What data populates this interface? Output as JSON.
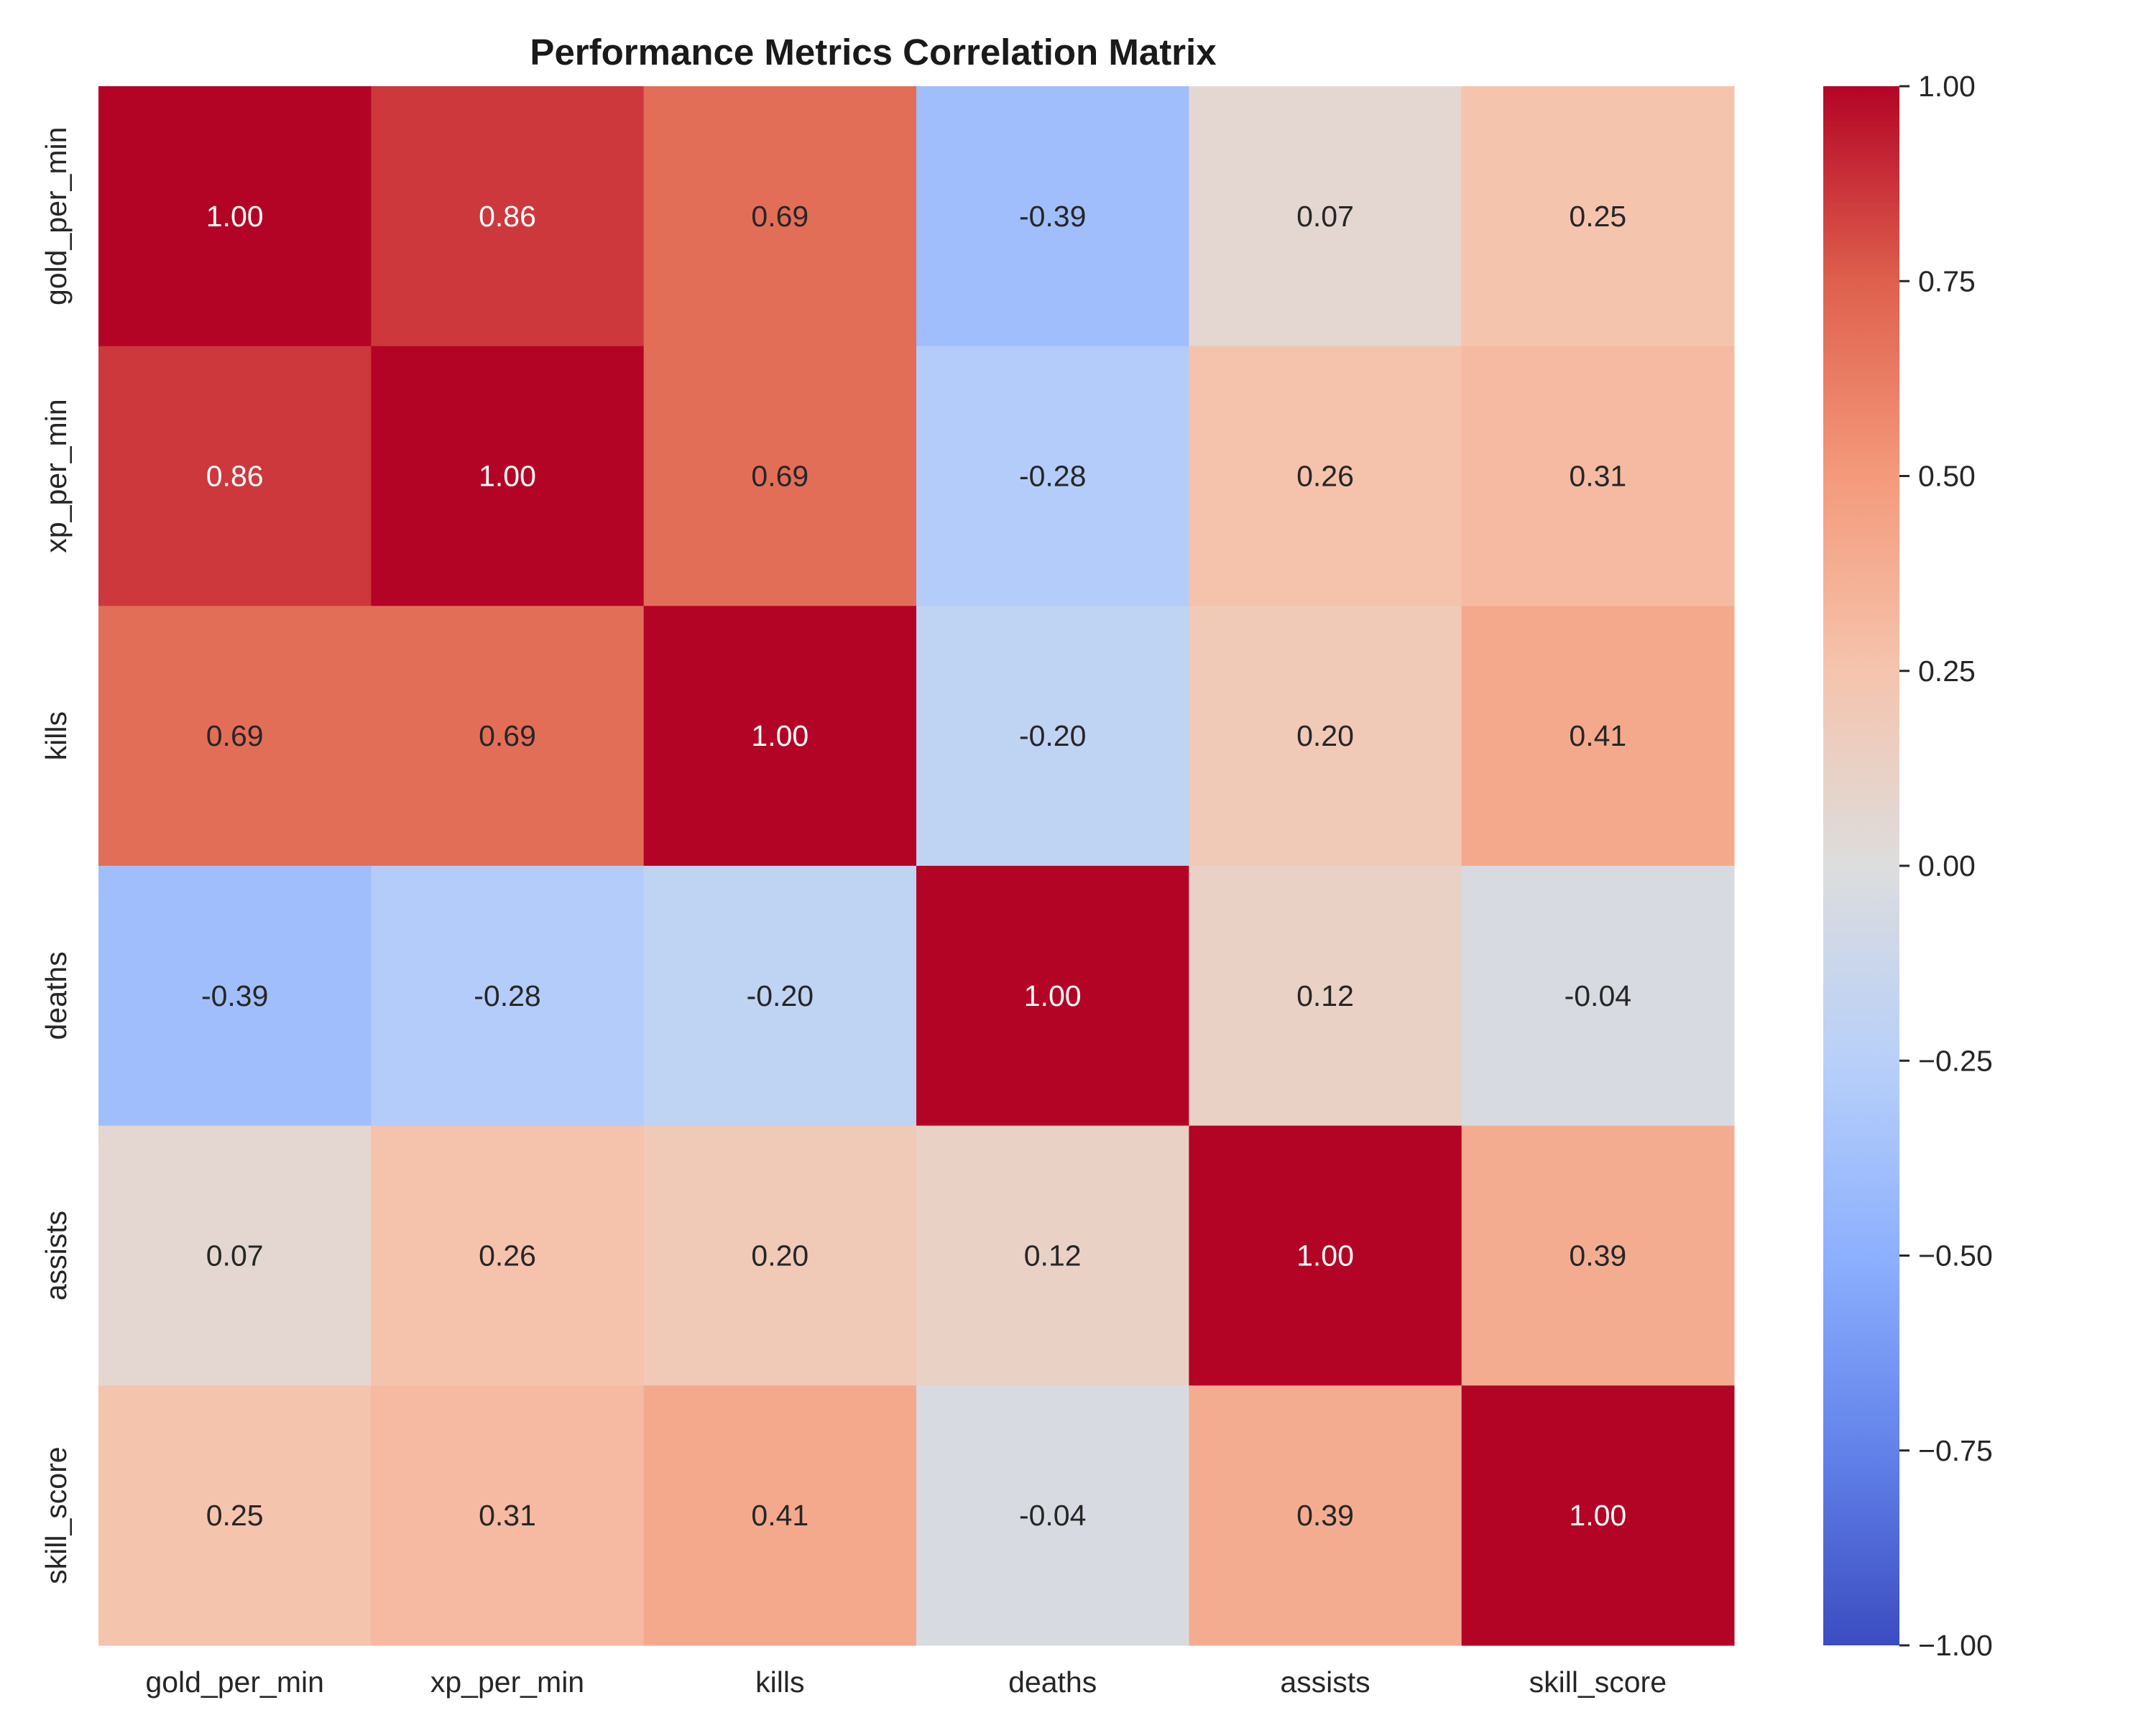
{
  "chart_data": {
    "type": "heatmap",
    "title": "Performance Metrics Correlation Matrix",
    "xlabel": "",
    "ylabel": "",
    "x_categories": [
      "gold_per_min",
      "xp_per_min",
      "kills",
      "deaths",
      "assists",
      "skill_score"
    ],
    "y_categories": [
      "gold_per_min",
      "xp_per_min",
      "kills",
      "deaths",
      "assists",
      "skill_score"
    ],
    "values": [
      [
        1.0,
        0.86,
        0.69,
        -0.39,
        0.07,
        0.25
      ],
      [
        0.86,
        1.0,
        0.69,
        -0.28,
        0.26,
        0.31
      ],
      [
        0.69,
        0.69,
        1.0,
        -0.2,
        0.2,
        0.41
      ],
      [
        -0.39,
        -0.28,
        -0.2,
        1.0,
        0.12,
        -0.04
      ],
      [
        0.07,
        0.26,
        0.2,
        0.12,
        1.0,
        0.39
      ],
      [
        0.25,
        0.31,
        0.41,
        -0.04,
        0.39,
        1.0
      ]
    ],
    "value_format": "0.00",
    "colormap": "coolwarm",
    "vmin": -1.0,
    "vmax": 1.0,
    "colorbar": {
      "ticks": [
        1.0,
        0.75,
        0.5,
        0.25,
        0.0,
        -0.25,
        -0.5,
        -0.75,
        -1.0
      ],
      "tick_labels": [
        "1.00",
        "0.75",
        "0.50",
        "0.25",
        "0.00",
        "−0.25",
        "−0.50",
        "−0.75",
        "−1.00"
      ],
      "placement": "right"
    },
    "grid": false
  }
}
